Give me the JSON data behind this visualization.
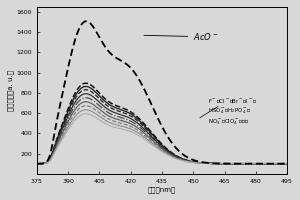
{
  "title": "",
  "xlabel": "波长（nm）",
  "ylabel": "荧光强度（a. u.）",
  "xmin": 375,
  "xmax": 495,
  "ymin": 0,
  "ymax": 1650,
  "yticks": [
    200,
    400,
    600,
    800,
    1000,
    1200,
    1400,
    1600
  ],
  "xticks": [
    375,
    390,
    405,
    420,
    435,
    450,
    465,
    480,
    495
  ],
  "background_color": "#d8d8d8",
  "aco_label": "AcO⁻",
  "group_label": "F⁻、Cl⁻、Br⁻、I⁻，\nHSO₄⁻、H₂PO₄⁻，\nNO₃⁻、ClO₄⁻、空白",
  "anion_scales": [
    1.0,
    0.96,
    0.92,
    0.87,
    0.82,
    0.77,
    0.72,
    0.67,
    0.62
  ],
  "anion_linestyles": [
    "--",
    "-",
    "--",
    "-",
    "-.",
    "-",
    "--",
    "-",
    "-"
  ],
  "anion_linewidths": [
    1.1,
    0.9,
    0.9,
    0.85,
    0.85,
    0.8,
    0.8,
    0.75,
    0.75
  ],
  "anion_colors": [
    "#111111",
    "#1a1a1a",
    "#222222",
    "#2a2a2a",
    "#444444",
    "#555555",
    "#777777",
    "#888888",
    "#aaaaaa"
  ]
}
